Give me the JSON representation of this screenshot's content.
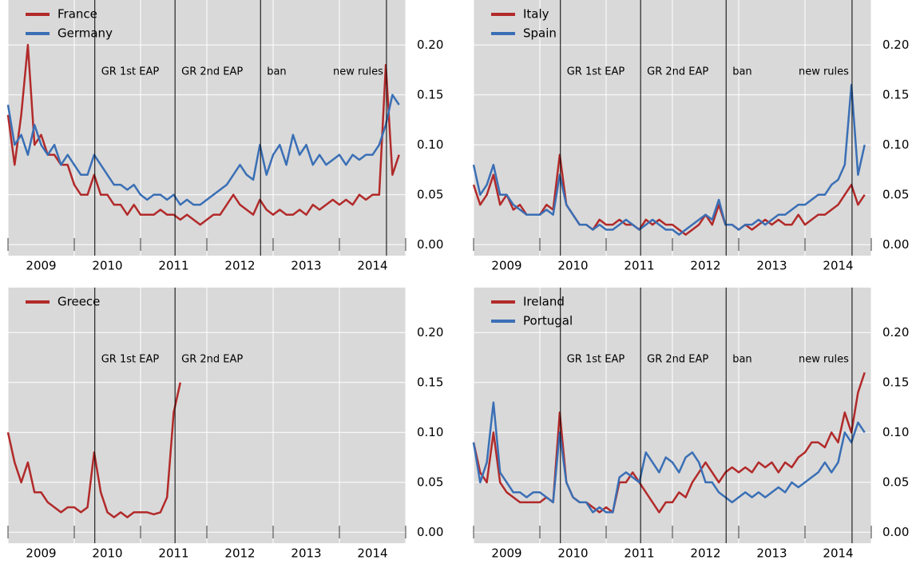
{
  "chart_data": [
    {
      "type": "line",
      "x": [
        2009.0,
        2009.1,
        2009.2,
        2009.3,
        2009.4,
        2009.5,
        2009.6,
        2009.7,
        2009.8,
        2009.9,
        2010.0,
        2010.1,
        2010.2,
        2010.3,
        2010.4,
        2010.5,
        2010.6,
        2010.7,
        2010.8,
        2010.9,
        2011.0,
        2011.1,
        2011.2,
        2011.3,
        2011.4,
        2011.5,
        2011.6,
        2011.7,
        2011.8,
        2011.9,
        2012.0,
        2012.1,
        2012.2,
        2012.3,
        2012.4,
        2012.5,
        2012.6,
        2012.7,
        2012.8,
        2012.9,
        2013.0,
        2013.1,
        2013.2,
        2013.3,
        2013.4,
        2013.5,
        2013.6,
        2013.7,
        2013.8,
        2013.9,
        2014.0,
        2014.1,
        2014.2,
        2014.3,
        2014.4,
        2014.5,
        2014.6,
        2014.7,
        2014.8,
        2014.9
      ],
      "series": [
        {
          "name": "France",
          "color": "#b22a2a",
          "values": [
            0.13,
            0.08,
            0.13,
            0.2,
            0.1,
            0.11,
            0.09,
            0.09,
            0.08,
            0.08,
            0.06,
            0.05,
            0.05,
            0.07,
            0.05,
            0.05,
            0.04,
            0.04,
            0.03,
            0.04,
            0.03,
            0.03,
            0.03,
            0.035,
            0.03,
            0.03,
            0.025,
            0.03,
            0.025,
            0.02,
            0.025,
            0.03,
            0.03,
            0.04,
            0.05,
            0.04,
            0.035,
            0.03,
            0.045,
            0.035,
            0.03,
            0.035,
            0.03,
            0.03,
            0.035,
            0.03,
            0.04,
            0.035,
            0.04,
            0.045,
            0.04,
            0.045,
            0.04,
            0.05,
            0.045,
            0.05,
            0.05,
            0.18,
            0.07,
            0.09
          ]
        },
        {
          "name": "Germany",
          "color": "#3a6fb5",
          "values": [
            0.14,
            0.1,
            0.11,
            0.09,
            0.12,
            0.1,
            0.09,
            0.1,
            0.08,
            0.09,
            0.08,
            0.07,
            0.07,
            0.09,
            0.08,
            0.07,
            0.06,
            0.06,
            0.055,
            0.06,
            0.05,
            0.045,
            0.05,
            0.05,
            0.045,
            0.05,
            0.04,
            0.045,
            0.04,
            0.04,
            0.045,
            0.05,
            0.055,
            0.06,
            0.07,
            0.08,
            0.07,
            0.065,
            0.1,
            0.07,
            0.09,
            0.1,
            0.08,
            0.11,
            0.09,
            0.1,
            0.08,
            0.09,
            0.08,
            0.085,
            0.09,
            0.08,
            0.09,
            0.085,
            0.09,
            0.09,
            0.1,
            0.12,
            0.15,
            0.14
          ]
        }
      ],
      "xlim": [
        2009,
        2015
      ],
      "xticks": [
        {
          "value": 2009.5,
          "label": "2009"
        },
        {
          "value": 2010.5,
          "label": "2010"
        },
        {
          "value": 2011.5,
          "label": "2011"
        },
        {
          "value": 2012.5,
          "label": "2012"
        },
        {
          "value": 2013.5,
          "label": "2013"
        },
        {
          "value": 2014.5,
          "label": "2014"
        }
      ],
      "ylim": [
        -0.011,
        0.245
      ],
      "yticks": [
        {
          "value": 0,
          "label": "0.00"
        },
        0.05,
        {
          "value": 0.1,
          "label": "0.10"
        },
        0.15,
        {
          "value": 0.2,
          "label": "0.20"
        }
      ],
      "events": [
        {
          "x": 2010.31,
          "label": "GR 1st EAP"
        },
        {
          "x": 2011.52,
          "label": "GR 2nd EAP"
        },
        {
          "x": 2012.81,
          "label": "ban"
        },
        {
          "x": 2014.71,
          "label": "new rules"
        }
      ],
      "grid": true,
      "legend": "upper left"
    },
    {
      "type": "line",
      "x": [
        2009.0,
        2009.1,
        2009.2,
        2009.3,
        2009.4,
        2009.5,
        2009.6,
        2009.7,
        2009.8,
        2009.9,
        2010.0,
        2010.1,
        2010.2,
        2010.3,
        2010.4,
        2010.5,
        2010.6,
        2010.7,
        2010.8,
        2010.9,
        2011.0,
        2011.1,
        2011.2,
        2011.3,
        2011.4,
        2011.5,
        2011.6,
        2011.7,
        2011.8,
        2011.9,
        2012.0,
        2012.1,
        2012.2,
        2012.3,
        2012.4,
        2012.5,
        2012.6,
        2012.7,
        2012.8,
        2012.9,
        2013.0,
        2013.1,
        2013.2,
        2013.3,
        2013.4,
        2013.5,
        2013.6,
        2013.7,
        2013.8,
        2013.9,
        2014.0,
        2014.1,
        2014.2,
        2014.3,
        2014.4,
        2014.5,
        2014.6,
        2014.7,
        2014.8,
        2014.9
      ],
      "series": [
        {
          "name": "Italy",
          "color": "#b22a2a",
          "values": [
            0.06,
            0.04,
            0.05,
            0.07,
            0.04,
            0.05,
            0.035,
            0.04,
            0.03,
            0.03,
            0.03,
            0.04,
            0.035,
            0.09,
            0.04,
            0.03,
            0.02,
            0.02,
            0.015,
            0.025,
            0.02,
            0.02,
            0.025,
            0.02,
            0.02,
            0.015,
            0.025,
            0.02,
            0.025,
            0.02,
            0.02,
            0.015,
            0.01,
            0.015,
            0.02,
            0.03,
            0.02,
            0.04,
            0.02,
            0.02,
            0.015,
            0.02,
            0.015,
            0.02,
            0.025,
            0.02,
            0.025,
            0.02,
            0.02,
            0.03,
            0.02,
            0.025,
            0.03,
            0.03,
            0.035,
            0.04,
            0.05,
            0.06,
            0.04,
            0.05
          ]
        },
        {
          "name": "Spain",
          "color": "#3a6fb5",
          "values": [
            0.08,
            0.05,
            0.06,
            0.08,
            0.05,
            0.05,
            0.04,
            0.035,
            0.03,
            0.03,
            0.03,
            0.035,
            0.03,
            0.07,
            0.04,
            0.03,
            0.02,
            0.02,
            0.015,
            0.02,
            0.015,
            0.015,
            0.02,
            0.025,
            0.02,
            0.015,
            0.02,
            0.025,
            0.02,
            0.015,
            0.015,
            0.01,
            0.015,
            0.02,
            0.025,
            0.03,
            0.025,
            0.045,
            0.02,
            0.02,
            0.015,
            0.02,
            0.02,
            0.025,
            0.02,
            0.025,
            0.03,
            0.03,
            0.035,
            0.04,
            0.04,
            0.045,
            0.05,
            0.05,
            0.06,
            0.065,
            0.08,
            0.16,
            0.07,
            0.1
          ]
        }
      ],
      "xlim": [
        2009,
        2015
      ],
      "xticks": [
        {
          "value": 2009.5,
          "label": "2009"
        },
        {
          "value": 2010.5,
          "label": "2010"
        },
        {
          "value": 2011.5,
          "label": "2011"
        },
        {
          "value": 2012.5,
          "label": "2012"
        },
        {
          "value": 2013.5,
          "label": "2013"
        },
        {
          "value": 2014.5,
          "label": "2014"
        }
      ],
      "ylim": [
        -0.011,
        0.245
      ],
      "yticks": [
        {
          "value": 0,
          "label": "0.00"
        },
        0.05,
        {
          "value": 0.1,
          "label": "0.10"
        },
        0.15,
        {
          "value": 0.2,
          "label": "0.20"
        }
      ],
      "events": [
        {
          "x": 2010.31,
          "label": "GR 1st EAP"
        },
        {
          "x": 2011.52,
          "label": "GR 2nd EAP"
        },
        {
          "x": 2012.81,
          "label": "ban"
        },
        {
          "x": 2014.71,
          "label": "new rules"
        }
      ],
      "grid": true,
      "legend": "upper left"
    },
    {
      "type": "line",
      "x": [
        2009.0,
        2009.1,
        2009.2,
        2009.3,
        2009.4,
        2009.5,
        2009.6,
        2009.7,
        2009.8,
        2009.9,
        2010.0,
        2010.1,
        2010.2,
        2010.3,
        2010.4,
        2010.5,
        2010.6,
        2010.7,
        2010.8,
        2010.9,
        2011.0,
        2011.1,
        2011.2,
        2011.3,
        2011.4,
        2011.5,
        2011.6,
        2011.7,
        2011.8,
        2011.9,
        2012.0,
        2012.1,
        2012.2,
        2012.3,
        2012.4,
        2012.5,
        2012.6,
        2012.7,
        2012.8,
        2012.9,
        2013.0,
        2013.1,
        2013.2,
        2013.3,
        2013.4,
        2013.5,
        2013.6,
        2013.7,
        2013.8,
        2013.9,
        2014.0,
        2014.1,
        2014.2,
        2014.3,
        2014.4,
        2014.5,
        2014.6,
        2014.7,
        2014.8,
        2014.9
      ],
      "series": [
        {
          "name": "Greece",
          "color": "#b22a2a",
          "values": [
            0.1,
            0.07,
            0.05,
            0.07,
            0.04,
            0.04,
            0.03,
            0.025,
            0.02,
            0.025,
            0.025,
            0.02,
            0.025,
            0.08,
            0.04,
            0.02,
            0.015,
            0.02,
            0.015,
            0.02,
            0.02,
            0.02,
            0.018,
            0.02,
            0.035,
            0.12,
            0.15,
            null,
            null,
            null,
            null,
            null,
            null,
            null,
            null,
            null,
            null,
            null,
            null,
            null,
            null,
            null,
            null,
            null,
            null,
            null,
            null,
            null,
            null,
            null,
            null,
            null,
            null,
            null,
            null,
            null,
            null,
            null,
            null,
            null
          ]
        }
      ],
      "xlim": [
        2009,
        2015
      ],
      "xticks": [
        {
          "value": 2009.5,
          "label": "2009"
        },
        {
          "value": 2010.5,
          "label": "2010"
        },
        {
          "value": 2011.5,
          "label": "2011"
        },
        {
          "value": 2012.5,
          "label": "2012"
        },
        {
          "value": 2013.5,
          "label": "2013"
        },
        {
          "value": 2014.5,
          "label": "2014"
        }
      ],
      "ylim": [
        -0.011,
        0.245
      ],
      "yticks": [
        {
          "value": 0,
          "label": "0.00"
        },
        0.05,
        {
          "value": 0.1,
          "label": "0.10"
        },
        0.15,
        {
          "value": 0.2,
          "label": "0.20"
        }
      ],
      "events": [
        {
          "x": 2010.31,
          "label": "GR 1st EAP"
        },
        {
          "x": 2011.52,
          "label": "GR 2nd EAP"
        }
      ],
      "grid": true,
      "legend": "upper left"
    },
    {
      "type": "line",
      "x": [
        2009.0,
        2009.1,
        2009.2,
        2009.3,
        2009.4,
        2009.5,
        2009.6,
        2009.7,
        2009.8,
        2009.9,
        2010.0,
        2010.1,
        2010.2,
        2010.3,
        2010.4,
        2010.5,
        2010.6,
        2010.7,
        2010.8,
        2010.9,
        2011.0,
        2011.1,
        2011.2,
        2011.3,
        2011.4,
        2011.5,
        2011.6,
        2011.7,
        2011.8,
        2011.9,
        2012.0,
        2012.1,
        2012.2,
        2012.3,
        2012.4,
        2012.5,
        2012.6,
        2012.7,
        2012.8,
        2012.9,
        2013.0,
        2013.1,
        2013.2,
        2013.3,
        2013.4,
        2013.5,
        2013.6,
        2013.7,
        2013.8,
        2013.9,
        2014.0,
        2014.1,
        2014.2,
        2014.3,
        2014.4,
        2014.5,
        2014.6,
        2014.7,
        2014.8,
        2014.9
      ],
      "series": [
        {
          "name": "Ireland",
          "color": "#b22a2a",
          "values": [
            0.09,
            0.06,
            0.05,
            0.1,
            0.05,
            0.04,
            0.035,
            0.03,
            0.03,
            0.03,
            0.03,
            0.035,
            0.03,
            0.12,
            0.05,
            0.035,
            0.03,
            0.03,
            0.025,
            0.02,
            0.025,
            0.02,
            0.05,
            0.05,
            0.06,
            0.05,
            0.04,
            0.03,
            0.02,
            0.03,
            0.03,
            0.04,
            0.035,
            0.05,
            0.06,
            0.07,
            0.06,
            0.05,
            0.06,
            0.065,
            0.06,
            0.065,
            0.06,
            0.07,
            0.065,
            0.07,
            0.06,
            0.07,
            0.065,
            0.075,
            0.08,
            0.09,
            0.09,
            0.085,
            0.1,
            0.09,
            0.12,
            0.1,
            0.14,
            0.16
          ]
        },
        {
          "name": "Portugal",
          "color": "#3a6fb5",
          "values": [
            0.09,
            0.05,
            0.07,
            0.13,
            0.06,
            0.05,
            0.04,
            0.04,
            0.035,
            0.04,
            0.04,
            0.035,
            0.03,
            0.1,
            0.05,
            0.035,
            0.03,
            0.03,
            0.02,
            0.025,
            0.02,
            0.02,
            0.055,
            0.06,
            0.055,
            0.05,
            0.08,
            0.07,
            0.06,
            0.075,
            0.07,
            0.06,
            0.075,
            0.08,
            0.07,
            0.05,
            0.05,
            0.04,
            0.035,
            0.03,
            0.035,
            0.04,
            0.035,
            0.04,
            0.035,
            0.04,
            0.045,
            0.04,
            0.05,
            0.045,
            0.05,
            0.055,
            0.06,
            0.07,
            0.06,
            0.07,
            0.1,
            0.09,
            0.11,
            0.1
          ]
        }
      ],
      "xlim": [
        2009,
        2015
      ],
      "xticks": [
        {
          "value": 2009.5,
          "label": "2009"
        },
        {
          "value": 2010.5,
          "label": "2010"
        },
        {
          "value": 2011.5,
          "label": "2011"
        },
        {
          "value": 2012.5,
          "label": "2012"
        },
        {
          "value": 2013.5,
          "label": "2013"
        },
        {
          "value": 2014.5,
          "label": "2014"
        }
      ],
      "ylim": [
        -0.011,
        0.245
      ],
      "yticks": [
        {
          "value": 0,
          "label": "0.00"
        },
        0.05,
        {
          "value": 0.1,
          "label": "0.10"
        },
        0.15,
        {
          "value": 0.2,
          "label": "0.20"
        }
      ],
      "events": [
        {
          "x": 2010.31,
          "label": "GR 1st EAP"
        },
        {
          "x": 2011.52,
          "label": "GR 2nd EAP"
        },
        {
          "x": 2012.81,
          "label": "ban"
        },
        {
          "x": 2014.71,
          "label": "new rules"
        }
      ],
      "grid": true,
      "legend": "upper left"
    }
  ]
}
